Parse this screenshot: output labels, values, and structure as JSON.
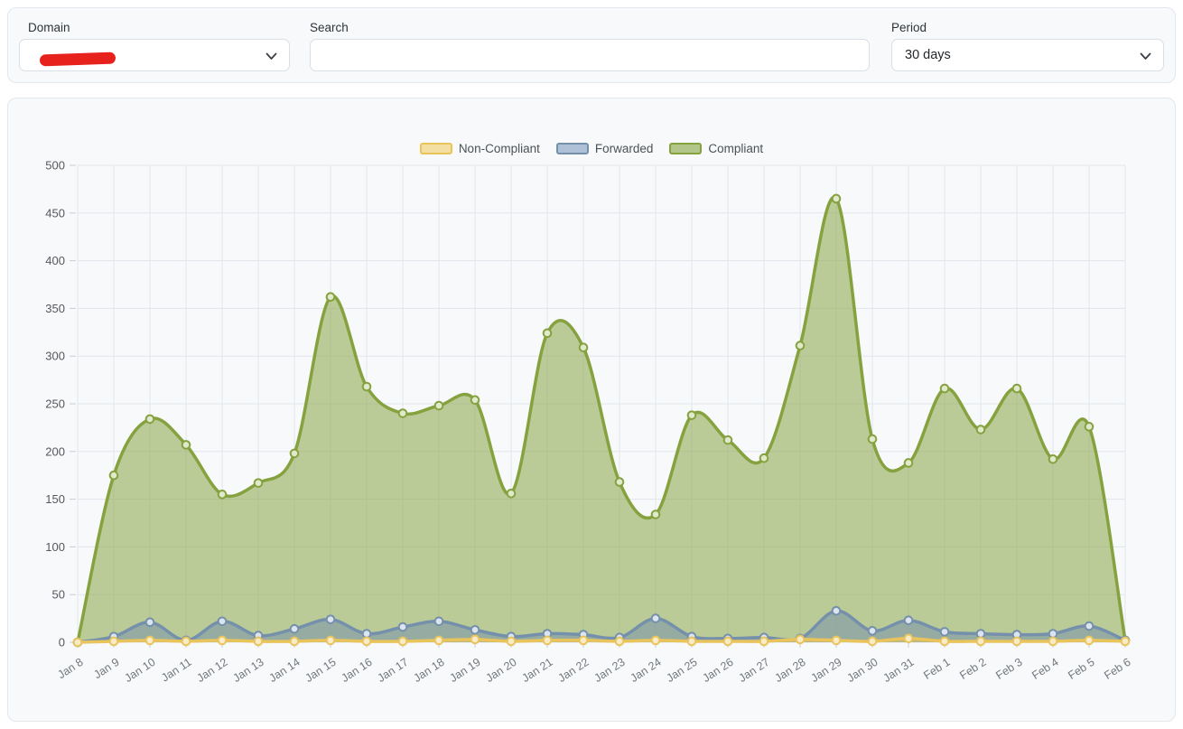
{
  "filters": {
    "domain": {
      "label": "Domain",
      "value_redacted": true,
      "selected_value": ""
    },
    "search": {
      "label": "Search",
      "value": "",
      "placeholder": ""
    },
    "period": {
      "label": "Period",
      "selected_value": "30 days"
    }
  },
  "chart_data": {
    "type": "area",
    "title": "",
    "xlabel": "",
    "ylabel": "",
    "ylim": [
      0,
      500
    ],
    "ytick_step": 50,
    "yticks": [
      0,
      50,
      100,
      150,
      200,
      250,
      300,
      350,
      400,
      450,
      500
    ],
    "grid": true,
    "legend_position": "top-center",
    "categories": [
      "Jan 8",
      "Jan 9",
      "Jan 10",
      "Jan 11",
      "Jan 12",
      "Jan 13",
      "Jan 14",
      "Jan 15",
      "Jan 16",
      "Jan 17",
      "Jan 18",
      "Jan 19",
      "Jan 20",
      "Jan 21",
      "Jan 22",
      "Jan 23",
      "Jan 24",
      "Jan 25",
      "Jan 26",
      "Jan 27",
      "Jan 28",
      "Jan 29",
      "Jan 30",
      "Jan 31",
      "Feb 1",
      "Feb 2",
      "Feb 3",
      "Feb 4",
      "Feb 5",
      "Feb 6"
    ],
    "series": [
      {
        "name": "Non-Compliant",
        "color": "#e9c45c",
        "legend_fill": "#f3dfa2",
        "point_fill": "#f8ecc8",
        "values": [
          0,
          1,
          2,
          1,
          2,
          1,
          1,
          2,
          1,
          1,
          2,
          3,
          1,
          2,
          2,
          1,
          2,
          1,
          1,
          1,
          3,
          2,
          1,
          4,
          1,
          1,
          1,
          1,
          2,
          1
        ]
      },
      {
        "name": "Forwarded",
        "color": "#7590ab",
        "legend_fill": "#aec1d6",
        "point_fill": "#dce5ef",
        "values": [
          0,
          6,
          21,
          2,
          22,
          7,
          14,
          24,
          9,
          16,
          22,
          13,
          6,
          9,
          8,
          5,
          25,
          6,
          4,
          5,
          4,
          33,
          12,
          23,
          11,
          9,
          8,
          9,
          17,
          2
        ]
      },
      {
        "name": "Compliant",
        "color": "#85a23e",
        "legend_fill": "#b2c68a",
        "point_fill": "#e1e9cd",
        "values": [
          0,
          175,
          234,
          207,
          155,
          167,
          198,
          362,
          268,
          240,
          248,
          254,
          156,
          324,
          309,
          168,
          134,
          238,
          212,
          193,
          311,
          465,
          213,
          188,
          266,
          223,
          266,
          192,
          226,
          2
        ]
      }
    ]
  }
}
